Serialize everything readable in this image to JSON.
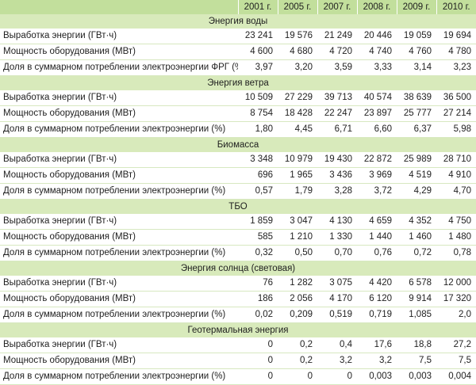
{
  "years": [
    "2001 г.",
    "2005 г.",
    "2007 г.",
    "2008 г.",
    "2009 г.",
    "2010 г."
  ],
  "sections": [
    {
      "title": "Энергия воды",
      "rows": [
        {
          "label": "Выработка энергии (ГВт·ч)",
          "values": [
            "23 241",
            "19 576",
            "21 249",
            "20 446",
            "19 059",
            "19 694"
          ]
        },
        {
          "label": "Мощность оборудования (МВт)",
          "values": [
            "4 600",
            "4 680",
            "4 720",
            "4 740",
            "4 760",
            "4 780"
          ]
        },
        {
          "label": "Доля в суммарном потреблении электроэнергии ФРГ (%)",
          "values": [
            "3,97",
            "3,20",
            "3,59",
            "3,33",
            "3,14",
            "3,23"
          ]
        }
      ]
    },
    {
      "title": "Энергия ветра",
      "rows": [
        {
          "label": "Выработка энергии (ГВт·ч)",
          "values": [
            "10 509",
            "27 229",
            "39 713",
            "40 574",
            "38 639",
            "36 500"
          ]
        },
        {
          "label": "Мощность оборудования (МВт)",
          "values": [
            "8 754",
            "18 428",
            "22 247",
            "23 897",
            "25 777",
            "27 214"
          ]
        },
        {
          "label": "Доля в суммарном потреблении электроэнергии (%)",
          "values": [
            "1,80",
            "4,45",
            "6,71",
            "6,60",
            "6,37",
            "5,98"
          ]
        }
      ]
    },
    {
      "title": "Биомасса",
      "rows": [
        {
          "label": "Выработка энергии (ГВт·ч)",
          "values": [
            "3 348",
            "10 979",
            "19 430",
            "22 872",
            "25 989",
            "28 710"
          ]
        },
        {
          "label": "Мощность оборудования (МВт)",
          "values": [
            "696",
            "1 965",
            "3 436",
            "3 969",
            "4 519",
            "4 910"
          ]
        },
        {
          "label": "Доля в суммарном потреблении электроэнергии (%)",
          "values": [
            "0,57",
            "1,79",
            "3,28",
            "3,72",
            "4,29",
            "4,70"
          ]
        }
      ]
    },
    {
      "title": "ТБО",
      "rows": [
        {
          "label": "Выработка энергии (ГВт·ч)",
          "values": [
            "1 859",
            "3 047",
            "4 130",
            "4 659",
            "4 352",
            "4 750"
          ]
        },
        {
          "label": "Мощность оборудования (МВт)",
          "values": [
            "585",
            "1 210",
            "1 330",
            "1 440",
            "1 460",
            "1 480"
          ]
        },
        {
          "label": "Доля в суммарном потреблении электроэнергии (%)",
          "values": [
            "0,32",
            "0,50",
            "0,70",
            "0,76",
            "0,72",
            "0,78"
          ]
        }
      ]
    },
    {
      "title": "Энергия солнца (световая)",
      "rows": [
        {
          "label": "Выработка энергии (ГВт·ч)",
          "values": [
            "76",
            "1 282",
            "3 075",
            "4 420",
            "6 578",
            "12 000"
          ]
        },
        {
          "label": "Мощность оборудования (МВт)",
          "values": [
            "186",
            "2 056",
            "4 170",
            "6 120",
            "9 914",
            "17 320"
          ]
        },
        {
          "label": "Доля в суммарном потреблении электроэнергии (%)",
          "values": [
            "0,02",
            "0,209",
            "0,519",
            "0,719",
            "1,085",
            "2,0"
          ]
        }
      ]
    },
    {
      "title": "Геотермальная энергия",
      "rows": [
        {
          "label": "Выработка энергии (ГВт·ч)",
          "values": [
            "0",
            "0,2",
            "0,4",
            "17,6",
            "18,8",
            "27,2"
          ]
        },
        {
          "label": "Мощность оборудования (МВт)",
          "values": [
            "0",
            "0,2",
            "3,2",
            "3,2",
            "7,5",
            "7,5"
          ]
        },
        {
          "label": "Доля в суммарном потреблении электроэнергии (%)",
          "values": [
            "0",
            "0",
            "0",
            "0,003",
            "0,003",
            "0,004"
          ]
        }
      ]
    }
  ],
  "colors": {
    "header_bg": "#c2df9c",
    "section_bg": "#d8eabb",
    "row_rule": "#d7e8c0",
    "text": "#1e1e1e"
  }
}
